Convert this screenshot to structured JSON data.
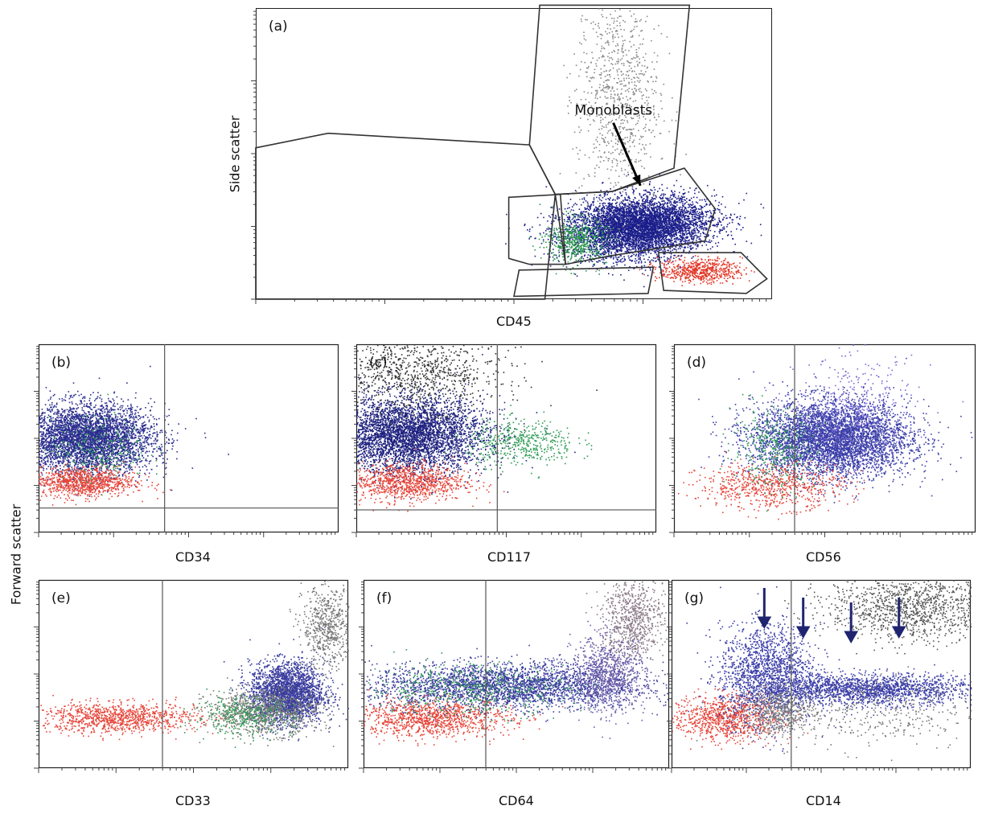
{
  "figure": {
    "ylabel_a": "Side scatter",
    "ylabel_shared": "Forward scatter"
  },
  "chart_data": [
    {
      "id": "a",
      "type": "scatter",
      "panel_label": "(a)",
      "xlabel": "CD45",
      "ylabel": "Side scatter",
      "xlim": [
        0,
        100
      ],
      "ylim": [
        0,
        100
      ],
      "gates": [
        [
          [
            0,
            52
          ],
          [
            14,
            57
          ],
          [
            53,
            53
          ],
          [
            58,
            36
          ],
          [
            56,
            0
          ],
          [
            0,
            0
          ]
        ],
        [
          [
            53,
            53
          ],
          [
            55,
            101
          ],
          [
            84,
            101
          ],
          [
            81,
            45
          ],
          [
            69,
            37
          ],
          [
            58,
            36
          ]
        ],
        [
          [
            58,
            36
          ],
          [
            69,
            37
          ],
          [
            83,
            45
          ],
          [
            89,
            31
          ],
          [
            87,
            20
          ],
          [
            69,
            15
          ],
          [
            60,
            12
          ]
        ],
        [
          [
            59,
            36
          ],
          [
            60,
            12
          ],
          [
            53,
            12
          ],
          [
            49,
            14
          ],
          [
            49,
            35
          ]
        ],
        [
          [
            78,
            16
          ],
          [
            94,
            16
          ],
          [
            99,
            7
          ],
          [
            95,
            2
          ],
          [
            79,
            3
          ]
        ],
        [
          [
            51,
            10
          ],
          [
            77,
            11
          ],
          [
            76,
            2
          ],
          [
            50,
            1
          ]
        ]
      ],
      "annotation": {
        "text": "Monoblasts",
        "x": 68,
        "y": 73,
        "arrow_to": [
          74.5,
          39
        ]
      },
      "series": [
        {
          "color": "#1c1f8a",
          "cx": 74,
          "cy": 25,
          "sx": 7,
          "sy": 5,
          "n": 5500,
          "angle": 0.25
        },
        {
          "color": "#2a9a4a",
          "cx": 62,
          "cy": 20,
          "sx": 3,
          "sy": 4,
          "n": 500
        },
        {
          "color": "#e23a2a",
          "cx": 86,
          "cy": 10,
          "sx": 4,
          "sy": 2,
          "n": 600
        },
        {
          "color": "#8a8a8a",
          "cx": 70,
          "cy": 70,
          "sx": 4,
          "sy": 20,
          "n": 900
        }
      ]
    },
    {
      "id": "b",
      "type": "scatter",
      "panel_label": "(b)",
      "xlabel": "CD34",
      "ylabel": "Forward scatter",
      "xlim": [
        0,
        100
      ],
      "ylim": [
        0,
        100
      ],
      "quadrant": {
        "x": 42,
        "y": 13
      },
      "series": [
        {
          "color": "#2b2d8f",
          "cx": 16,
          "cy": 50,
          "sx": 11,
          "sy": 9,
          "n": 4200
        },
        {
          "color": "#e6463a",
          "cx": 14,
          "cy": 27,
          "sx": 9,
          "sy": 4,
          "n": 1000
        },
        {
          "color": "#2e9b55",
          "cx": 20,
          "cy": 45,
          "sx": 8,
          "sy": 8,
          "n": 250
        }
      ]
    },
    {
      "id": "c",
      "type": "scatter",
      "panel_label": "(c)",
      "xlabel": "CD117",
      "ylabel": "Forward scatter",
      "xlim": [
        0,
        100
      ],
      "ylim": [
        0,
        100
      ],
      "quadrant": {
        "x": 47,
        "y": 12
      },
      "series": [
        {
          "color": "#1f227f",
          "cx": 17,
          "cy": 52,
          "sx": 13,
          "sy": 10,
          "n": 4200
        },
        {
          "color": "#e6463a",
          "cx": 16,
          "cy": 27,
          "sx": 10,
          "sy": 5,
          "n": 1000
        },
        {
          "color": "#2e9b55",
          "cx": 55,
          "cy": 48,
          "sx": 9,
          "sy": 6,
          "n": 450
        },
        {
          "color": "#333333",
          "cx": 20,
          "cy": 85,
          "sx": 14,
          "sy": 10,
          "n": 900
        }
      ]
    },
    {
      "id": "d",
      "type": "scatter",
      "panel_label": "(d)",
      "xlabel": "CD56",
      "ylabel": "Forward scatter",
      "xlim": [
        0,
        100
      ],
      "ylim": [
        0,
        100
      ],
      "quadrant": {
        "x": 40
      },
      "series": [
        {
          "color": "#3b3ea8",
          "cx": 52,
          "cy": 50,
          "sx": 13,
          "sy": 10,
          "n": 4800
        },
        {
          "color": "#e6463a",
          "cx": 32,
          "cy": 25,
          "sx": 12,
          "sy": 6,
          "n": 700
        },
        {
          "color": "#2e9b55",
          "cx": 33,
          "cy": 45,
          "sx": 7,
          "sy": 10,
          "n": 350
        },
        {
          "color": "#7a6ad8",
          "cx": 60,
          "cy": 65,
          "sx": 10,
          "sy": 14,
          "n": 400
        }
      ]
    },
    {
      "id": "e",
      "type": "scatter",
      "panel_label": "(e)",
      "xlabel": "CD33",
      "ylabel": "Forward scatter",
      "xlim": [
        0,
        100
      ],
      "ylim": [
        0,
        100
      ],
      "quadrant": {
        "x": 40
      },
      "series": [
        {
          "color": "#e6463a",
          "cx": 25,
          "cy": 27,
          "sx": 13,
          "sy": 4,
          "n": 1000
        },
        {
          "color": "#3a3d9e",
          "cx": 80,
          "cy": 40,
          "sx": 6,
          "sy": 8,
          "n": 2600
        },
        {
          "color": "#7b7f72",
          "cx": 72,
          "cy": 30,
          "sx": 9,
          "sy": 6,
          "n": 900
        },
        {
          "color": "#2e9b55",
          "cx": 66,
          "cy": 28,
          "sx": 8,
          "sy": 5,
          "n": 300
        },
        {
          "color": "#777777",
          "cx": 93,
          "cy": 75,
          "sx": 4,
          "sy": 11,
          "n": 600
        }
      ]
    },
    {
      "id": "f",
      "type": "scatter",
      "panel_label": "(f)",
      "xlabel": "CD64",
      "ylabel": "Forward scatter",
      "xlim": [
        0,
        100
      ],
      "ylim": [
        0,
        100
      ],
      "quadrant": {
        "x": 40
      },
      "series": [
        {
          "color": "#e6463a",
          "cx": 22,
          "cy": 27,
          "sx": 13,
          "sy": 5,
          "n": 1100
        },
        {
          "color": "#3a3d9e",
          "cx": 46,
          "cy": 44,
          "sx": 22,
          "sy": 6,
          "n": 2800
        },
        {
          "color": "#2e9b55",
          "cx": 35,
          "cy": 42,
          "sx": 17,
          "sy": 7,
          "n": 500
        },
        {
          "color": "#6a5ca8",
          "cx": 80,
          "cy": 50,
          "sx": 6,
          "sy": 10,
          "n": 900
        },
        {
          "color": "#8a7a86",
          "cx": 88,
          "cy": 80,
          "sx": 5,
          "sy": 11,
          "n": 700
        }
      ]
    },
    {
      "id": "g",
      "type": "scatter",
      "panel_label": "(g)",
      "xlabel": "CD14",
      "ylabel": "Forward scatter",
      "xlim": [
        0,
        100
      ],
      "ylim": [
        0,
        100
      ],
      "quadrant": {
        "x": 40
      },
      "arrows_at_x": [
        31,
        44,
        60,
        76
      ],
      "series": [
        {
          "color": "#e6463a",
          "cx": 18,
          "cy": 27,
          "sx": 9,
          "sy": 6,
          "n": 900
        },
        {
          "color": "#3b3ea8",
          "cx": 32,
          "cy": 50,
          "sx": 8,
          "sy": 13,
          "n": 1700
        },
        {
          "color": "#3b3ea8",
          "cx": 66,
          "cy": 42,
          "sx": 18,
          "sy": 4,
          "n": 1800
        },
        {
          "color": "#7e7e7e",
          "cx": 36,
          "cy": 30,
          "sx": 6,
          "sy": 6,
          "n": 500
        },
        {
          "color": "#555555",
          "cx": 80,
          "cy": 86,
          "sx": 14,
          "sy": 9,
          "n": 1200
        },
        {
          "color": "#777777",
          "cx": 68,
          "cy": 30,
          "sx": 18,
          "sy": 10,
          "n": 400
        }
      ]
    }
  ]
}
